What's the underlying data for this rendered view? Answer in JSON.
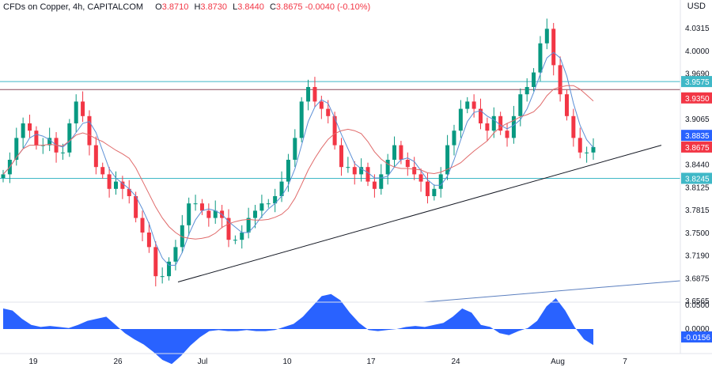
{
  "header": {
    "symbol": "CFDs on Copper, 4h, CAPITALCOM",
    "open_label": "O",
    "open": "3.8710",
    "high_label": "H",
    "high": "3.8730",
    "low_label": "L",
    "low": "3.8440",
    "close_label": "C",
    "close": "3.8675",
    "change": "-0.0040 (-0.10%)"
  },
  "currency": "USD",
  "colors": {
    "up": "#089981",
    "down": "#f23645",
    "ma_fast": "#5b8fd6",
    "ma_slow": "#e06a6a",
    "horizontal_line": "#3fb8c7",
    "resistance_line": "#8a4b5c",
    "trendline": "#131722",
    "oscillator": "#2962ff"
  },
  "chart_data": [
    {
      "type": "candlestick",
      "price_axis": {
        "ticks": [
          "4.0315",
          "4.0000",
          "3.9690",
          "3.9065",
          "3.8440",
          "3.8125",
          "3.7815",
          "3.7500",
          "3.7190",
          "3.6875",
          "3.6565"
        ],
        "range": [
          3.6565,
          4.05
        ]
      },
      "time_axis": {
        "labels": [
          "19",
          "26",
          "Jul",
          "10",
          "17",
          "24",
          "Aug",
          "7"
        ]
      },
      "price_labels": [
        {
          "value": "3.9575",
          "kind": "horizontal-line"
        },
        {
          "value": "3.9350",
          "kind": "slow-ma"
        },
        {
          "value": "3.8835",
          "kind": "fast-ma"
        },
        {
          "value": "3.8675",
          "kind": "last-price"
        },
        {
          "value": "3.8245",
          "kind": "horizontal-line"
        }
      ],
      "horizontal_levels": [
        3.9575,
        3.9465,
        3.8245
      ],
      "trendline": {
        "from": [
          3.682,
          "Jul low"
        ],
        "to": [
          3.87,
          "Aug 7"
        ]
      },
      "ohlc_last": {
        "open": 3.871,
        "high": 3.873,
        "low": 3.844,
        "close": 3.8675
      },
      "close_path": [
        3.83,
        3.85,
        3.88,
        3.9,
        3.89,
        3.87,
        3.87,
        3.88,
        3.86,
        3.86,
        3.9,
        3.93,
        3.91,
        3.87,
        3.84,
        3.83,
        3.81,
        3.82,
        3.81,
        3.8,
        3.77,
        3.75,
        3.73,
        3.69,
        3.69,
        3.71,
        3.73,
        3.76,
        3.79,
        3.79,
        3.78,
        3.77,
        3.78,
        3.77,
        3.74,
        3.74,
        3.75,
        3.77,
        3.78,
        3.79,
        3.79,
        3.8,
        3.82,
        3.85,
        3.88,
        3.93,
        3.95,
        3.93,
        3.92,
        3.91,
        3.87,
        3.84,
        3.84,
        3.83,
        3.84,
        3.82,
        3.81,
        3.83,
        3.85,
        3.87,
        3.85,
        3.84,
        3.83,
        3.82,
        3.8,
        3.81,
        3.83,
        3.87,
        3.89,
        3.92,
        3.93,
        3.92,
        3.9,
        3.89,
        3.91,
        3.89,
        3.88,
        3.91,
        3.94,
        3.95,
        3.97,
        4.01,
        4.03,
        3.98,
        3.94,
        3.91,
        3.88,
        3.86,
        3.86,
        3.8675
      ]
    },
    {
      "type": "area",
      "panel": "oscillator",
      "ticks": [
        "0.0500",
        "0.0000"
      ],
      "last_label": "-0.0156",
      "values": [
        0.02,
        0.018,
        0.01,
        0.004,
        0.002,
        0.003,
        0.002,
        0.001,
        0.004,
        0.008,
        0.01,
        0.012,
        0.004,
        -0.004,
        -0.01,
        -0.015,
        -0.022,
        -0.03,
        -0.034,
        -0.026,
        -0.016,
        -0.008,
        -0.002,
        -0.001,
        -0.002,
        -0.002,
        -0.001,
        -0.002,
        -0.002,
        -0.001,
        0.002,
        0.005,
        0.012,
        0.022,
        0.032,
        0.034,
        0.028,
        0.016,
        0.006,
        -0.001,
        -0.002,
        -0.001,
        0.0,
        0.002,
        0.003,
        0.002,
        0.004,
        0.006,
        0.012,
        0.02,
        0.016,
        0.004,
        0.002,
        -0.004,
        -0.006,
        -0.002,
        0.001,
        0.008,
        0.022,
        0.03,
        0.018,
        0.002,
        -0.01,
        -0.0156
      ]
    }
  ]
}
